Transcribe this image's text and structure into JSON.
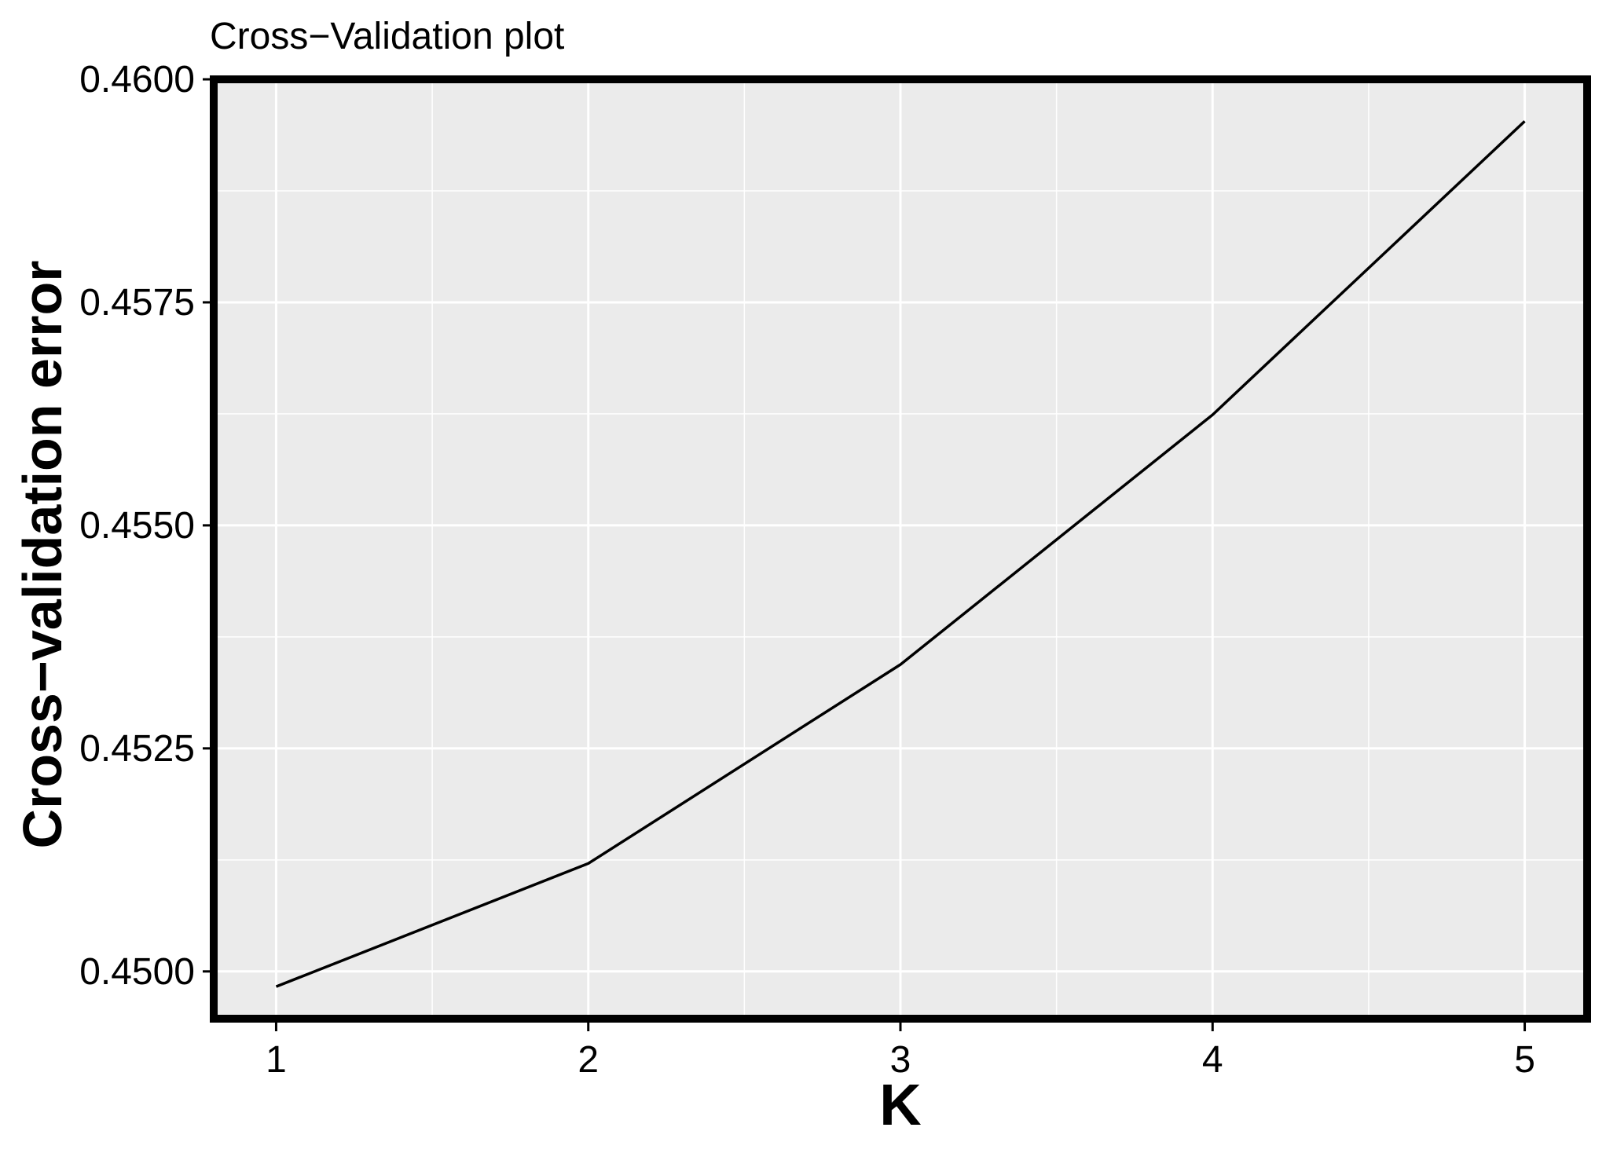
{
  "chart_data": {
    "type": "line",
    "title": "Cross−Validation plot",
    "xlabel": "K",
    "ylabel": "Cross−validation error",
    "x": [
      1,
      2,
      3,
      4,
      5
    ],
    "series": [
      {
        "values": [
          0.44983,
          0.45121,
          0.45344,
          0.45624,
          0.45953
        ]
      }
    ],
    "xlim": [
      0.8,
      5.2
    ],
    "ylim": [
      0.44947,
      0.46
    ],
    "x_ticks": [
      "1",
      "2",
      "3",
      "4",
      "5"
    ],
    "y_ticks": [
      "0.4500",
      "0.4525",
      "0.4550",
      "0.4575",
      "0.4600"
    ],
    "y_tick_values": [
      0.45,
      0.4525,
      0.455,
      0.4575,
      0.46
    ],
    "grid": true,
    "legend": "none",
    "colors": {
      "panel_background": "#ebebeb",
      "grid": "#ffffff",
      "line": "#000000",
      "border": "#000000"
    }
  }
}
